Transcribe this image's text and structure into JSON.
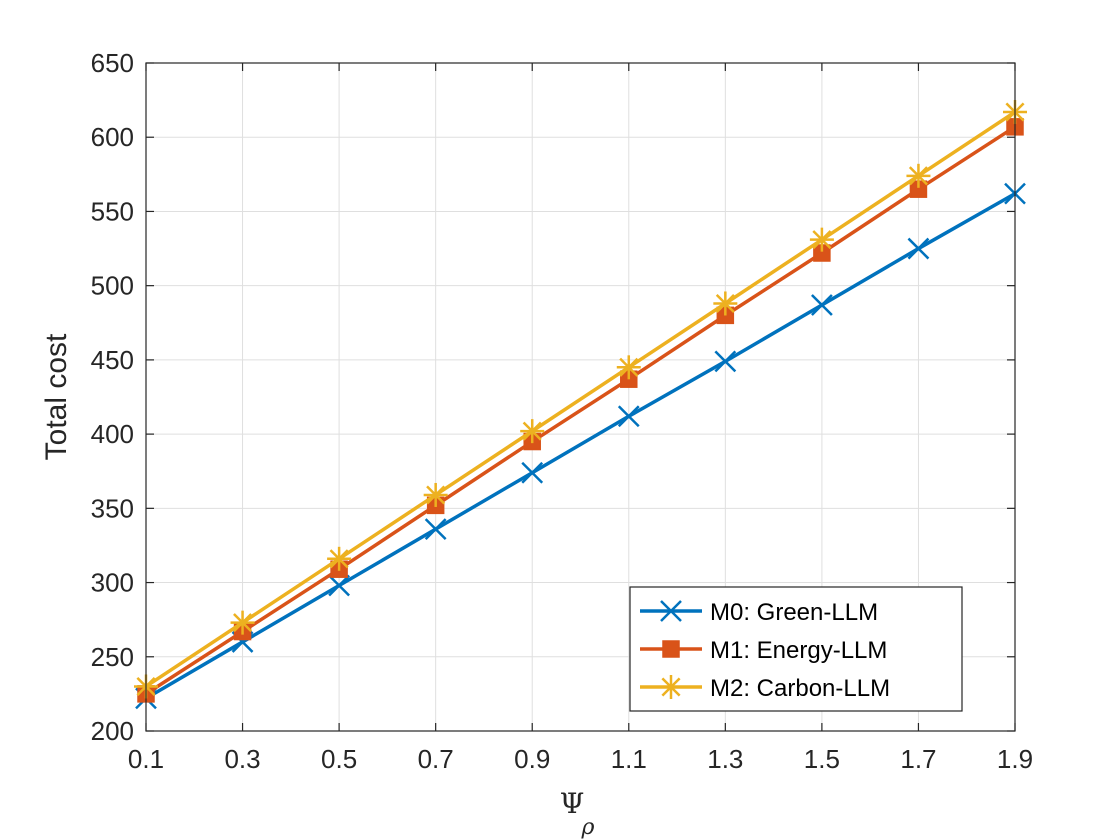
{
  "chart_data": {
    "type": "line",
    "title": "",
    "xlabel": "Ψ",
    "xlabel_subscript": "ρ",
    "ylabel": "Total cost",
    "x": [
      0.1,
      0.3,
      0.5,
      0.7,
      0.9,
      1.1,
      1.3,
      1.5,
      1.7,
      1.9
    ],
    "x_ticks": [
      "0.1",
      "0.3",
      "0.5",
      "0.7",
      "0.9",
      "1.1",
      "1.3",
      "1.5",
      "1.7",
      "1.9"
    ],
    "y_ticks": [
      "200",
      "250",
      "300",
      "350",
      "400",
      "450",
      "500",
      "550",
      "600",
      "650"
    ],
    "xlim": [
      0.1,
      1.9
    ],
    "ylim": [
      200,
      650
    ],
    "grid": true,
    "legend_position": "bottom-right",
    "series": [
      {
        "name": "M0: Green-LLM",
        "color": "#0072BD",
        "marker": "x",
        "values": [
          222,
          260,
          298,
          336,
          374,
          412,
          449,
          487,
          525,
          562
        ]
      },
      {
        "name": "M1: Energy-LLM",
        "color": "#D95319",
        "marker": "square",
        "values": [
          225,
          267,
          309,
          352,
          395,
          437,
          480,
          522,
          565,
          607
        ]
      },
      {
        "name": "M2: Carbon-LLM",
        "color": "#EDB120",
        "marker": "asterisk",
        "values": [
          230,
          273,
          316,
          359,
          402,
          445,
          488,
          531,
          574,
          617
        ]
      }
    ]
  }
}
